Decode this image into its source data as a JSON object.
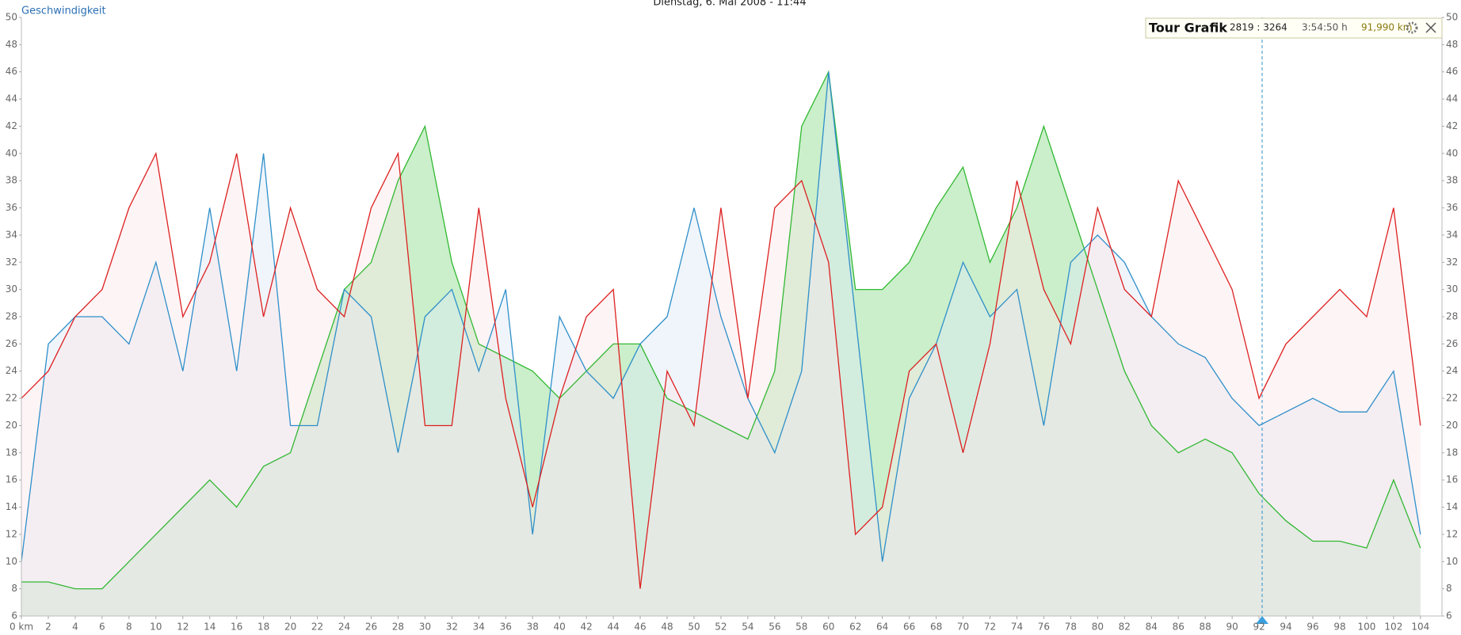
{
  "chart_data": {
    "type": "line",
    "title": "Dienstag, 6. Mai 2008 - 11:44",
    "y_label": "Geschwindigkeit",
    "panel": {
      "title": "Tour Grafik",
      "range": "2819 : 3264",
      "time": "3:54:50 h",
      "distance": "91,990 km"
    },
    "x": [
      0,
      2,
      4,
      6,
      8,
      10,
      12,
      14,
      16,
      18,
      20,
      22,
      24,
      26,
      28,
      30,
      32,
      34,
      36,
      38,
      40,
      42,
      44,
      46,
      48,
      50,
      52,
      54,
      56,
      58,
      60,
      62,
      64,
      66,
      68,
      70,
      72,
      74,
      76,
      78,
      80,
      82,
      84,
      86,
      88,
      90,
      92,
      94,
      96,
      98,
      100,
      102,
      104
    ],
    "series": [
      {
        "color": "#32b832",
        "fill": "#b8eab8",
        "values": [
          8.5,
          8.5,
          8,
          8,
          10,
          12,
          14,
          16,
          14,
          17,
          18,
          24,
          30,
          32,
          38,
          42,
          32,
          26,
          25,
          24,
          22,
          24,
          26,
          26,
          22,
          21,
          20,
          19,
          24,
          42,
          46,
          30,
          30,
          32,
          36,
          39,
          32,
          36,
          42,
          36,
          30,
          24,
          20,
          18,
          19,
          18,
          15,
          13,
          11.5,
          11.5,
          11,
          16,
          11
        ]
      },
      {
        "color": "#2e8fc9",
        "fill": "#dce9f7",
        "values": [
          10,
          26,
          28,
          28,
          26,
          32,
          24,
          36,
          24,
          40,
          20,
          20,
          30,
          28,
          18,
          28,
          30,
          24,
          30,
          12,
          28,
          24,
          22,
          26,
          28,
          36,
          28,
          22,
          18,
          24,
          46,
          28,
          10,
          22,
          26,
          32,
          28,
          30,
          20,
          32,
          34,
          32,
          28,
          26,
          25,
          22,
          20,
          21,
          22,
          21,
          21,
          24,
          12
        ]
      },
      {
        "color": "#dd2020",
        "fill": "#fbe6e8",
        "values": [
          22,
          24,
          28,
          30,
          36,
          40,
          28,
          32,
          40,
          28,
          36,
          30,
          28,
          36,
          40,
          20,
          20,
          36,
          22,
          14,
          22,
          28,
          30,
          8,
          24,
          20,
          36,
          22,
          36,
          38,
          32,
          12,
          14,
          24,
          26,
          18,
          26,
          38,
          30,
          26,
          36,
          30,
          28,
          38,
          34,
          30,
          22,
          26,
          28,
          30,
          28,
          36,
          20
        ]
      }
    ],
    "xlim": [
      0,
      105.6
    ],
    "xticks": [
      {
        "value": 0,
        "label": "0 km"
      },
      2,
      4,
      6,
      8,
      10,
      12,
      14,
      16,
      18,
      20,
      22,
      24,
      26,
      28,
      30,
      32,
      34,
      36,
      38,
      40,
      42,
      44,
      46,
      48,
      50,
      52,
      54,
      56,
      58,
      60,
      62,
      64,
      66,
      68,
      70,
      72,
      74,
      76,
      78,
      80,
      82,
      84,
      86,
      88,
      90,
      92,
      94,
      96,
      98,
      100,
      102,
      104
    ],
    "ylim": [
      6,
      50
    ],
    "yticks": [
      6,
      8,
      10,
      12,
      14,
      16,
      18,
      20,
      22,
      24,
      26,
      28,
      30,
      32,
      34,
      36,
      38,
      40,
      42,
      44,
      46,
      48,
      50
    ],
    "grid": false
  }
}
